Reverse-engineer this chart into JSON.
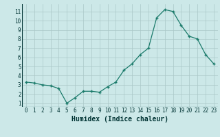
{
  "x": [
    0,
    1,
    2,
    3,
    4,
    5,
    6,
    7,
    8,
    9,
    10,
    11,
    12,
    13,
    14,
    15,
    16,
    17,
    18,
    19,
    20,
    21,
    22,
    23
  ],
  "y": [
    3.3,
    3.2,
    3.0,
    2.9,
    2.6,
    1.0,
    1.6,
    2.3,
    2.3,
    2.2,
    2.8,
    3.3,
    4.6,
    5.3,
    6.3,
    7.0,
    10.3,
    11.2,
    11.0,
    9.5,
    8.3,
    8.0,
    6.3,
    5.3
  ],
  "xlabel": "Humidex (Indice chaleur)",
  "bg_color": "#cce8e8",
  "line_color": "#1a7a6a",
  "grid_color": "#aac8c8",
  "tick_label_color": "#003333",
  "xlabel_color": "#003333",
  "ylim": [
    0.6,
    11.8
  ],
  "xlim": [
    -0.5,
    23.5
  ],
  "yticks": [
    1,
    2,
    3,
    4,
    5,
    6,
    7,
    8,
    9,
    10,
    11
  ],
  "xticks": [
    0,
    1,
    2,
    3,
    4,
    5,
    6,
    7,
    8,
    9,
    10,
    11,
    12,
    13,
    14,
    15,
    16,
    17,
    18,
    19,
    20,
    21,
    22,
    23
  ]
}
